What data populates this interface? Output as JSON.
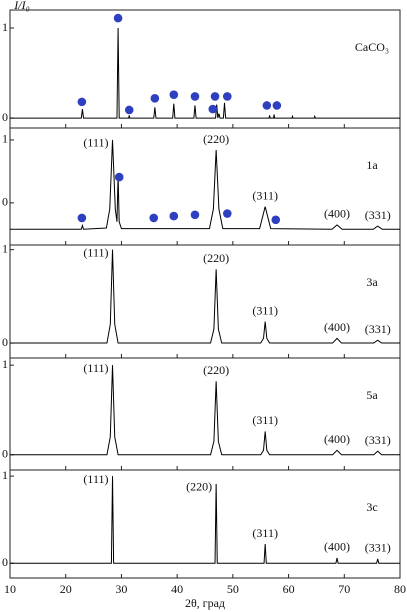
{
  "chart_data": [
    {
      "type": "line",
      "label": "CaCO₃",
      "ylabel": "I/I₀",
      "xlim": [
        10,
        80
      ],
      "ylim": [
        -0.11,
        1.2
      ],
      "yticks": [
        0,
        1
      ],
      "xticks": [
        10,
        20,
        30,
        40,
        50,
        60,
        70,
        80
      ],
      "line": {
        "color": "#000000",
        "x": [
          10,
          22.8,
          23.0,
          23.2,
          29.2,
          29.4,
          29.6,
          31.3,
          31.4,
          31.5,
          35.8,
          36.0,
          36.2,
          39.2,
          39.4,
          39.6,
          43.0,
          43.2,
          43.4,
          46.9,
          47.1,
          47.3,
          47.5,
          47.7,
          48.3,
          48.5,
          48.7,
          56.5,
          56.6,
          56.7,
          57.3,
          57.4,
          57.5,
          60.6,
          60.7,
          60.8,
          64.6,
          64.7,
          64.8,
          80
        ],
        "y": [
          0,
          0,
          0.1,
          0,
          0,
          1.0,
          0,
          0,
          0.03,
          0,
          0,
          0.12,
          0,
          0,
          0.16,
          0,
          0,
          0.14,
          0,
          0,
          0.15,
          0,
          0.05,
          0,
          0,
          0.17,
          0,
          0,
          0.03,
          0,
          0,
          0.04,
          0,
          0,
          0.02,
          0,
          0,
          0.02,
          0,
          0
        ]
      },
      "markers": {
        "color": "#2e3fbf",
        "x": [
          22.9,
          29.4,
          31.4,
          36.0,
          39.4,
          43.2,
          46.8,
          46.4,
          49.0,
          56.1,
          57.9
        ],
        "y": [
          0.18,
          1.11,
          0.09,
          0.22,
          0.26,
          0.24,
          0.24,
          0.1,
          0.24,
          0.14,
          0.14
        ]
      },
      "peaks": []
    },
    {
      "type": "line",
      "label": "1a",
      "xlim": [
        10,
        80
      ],
      "ylim": [
        -0.67,
        1.19
      ],
      "yticks": [
        0,
        1
      ],
      "xticks": [
        10,
        20,
        30,
        40,
        50,
        60,
        70,
        80
      ],
      "line": {
        "color": "#000000",
        "x": [
          10,
          22.8,
          23.0,
          23.2,
          27.3,
          27.9,
          28.4,
          28.9,
          29.2,
          29.4,
          29.6,
          30.0,
          45.8,
          46.5,
          47.0,
          47.5,
          48.2,
          54.8,
          55.4,
          55.8,
          56.2,
          56.8,
          67.8,
          68.7,
          69.6,
          75.2,
          76.0,
          76.8,
          80
        ],
        "y": [
          -0.42,
          -0.42,
          -0.36,
          -0.42,
          -0.4,
          -0.1,
          1.0,
          -0.1,
          -0.3,
          0.44,
          -0.3,
          -0.41,
          -0.41,
          -0.1,
          0.84,
          -0.1,
          -0.41,
          -0.41,
          -0.2,
          -0.06,
          -0.2,
          -0.41,
          -0.42,
          -0.35,
          -0.42,
          -0.42,
          -0.37,
          -0.42,
          -0.42
        ]
      },
      "markers": {
        "color": "#2e3fbf",
        "x": [
          22.9,
          29.6,
          35.8,
          39.4,
          43.2,
          49.0,
          57.7
        ],
        "y": [
          -0.24,
          0.41,
          -0.24,
          -0.21,
          -0.19,
          -0.17,
          -0.27
        ]
      },
      "peaks": [
        {
          "label": "(111)",
          "x": 28.4
        },
        {
          "label": "(220)",
          "x": 47.0
        },
        {
          "label": "(311)",
          "x": 55.8
        },
        {
          "label": "(400)",
          "x": 68.7
        },
        {
          "label": "(331)",
          "x": 76.0
        }
      ]
    },
    {
      "type": "line",
      "label": "3a",
      "xlim": [
        10,
        80
      ],
      "ylim": [
        -0.16,
        1.05
      ],
      "yticks": [
        0,
        1
      ],
      "xticks": [
        10,
        20,
        30,
        40,
        50,
        60,
        70,
        80
      ],
      "line": {
        "color": "#000000",
        "x": [
          10,
          27.4,
          28.0,
          28.4,
          28.8,
          29.4,
          46.0,
          46.6,
          47.0,
          47.4,
          48.0,
          55.0,
          55.5,
          55.8,
          56.1,
          56.6,
          67.9,
          68.7,
          69.5,
          75.3,
          76.0,
          76.7,
          80
        ],
        "y": [
          0,
          0,
          0.2,
          1.0,
          0.2,
          0,
          0,
          0.15,
          0.79,
          0.15,
          0,
          0,
          0.05,
          0.23,
          0.05,
          0,
          0,
          0.05,
          0,
          0,
          0.03,
          0,
          0
        ]
      },
      "peaks": [
        {
          "label": "(111)",
          "x": 28.4
        },
        {
          "label": "(220)",
          "x": 47.0
        },
        {
          "label": "(311)",
          "x": 55.8
        },
        {
          "label": "(400)",
          "x": 68.7
        },
        {
          "label": "(331)",
          "x": 76.0
        }
      ]
    },
    {
      "type": "line",
      "label": "5a",
      "xlim": [
        10,
        80
      ],
      "ylim": [
        -0.17,
        1.08
      ],
      "yticks": [
        0,
        1
      ],
      "xticks": [
        10,
        20,
        30,
        40,
        50,
        60,
        70,
        80
      ],
      "line": {
        "color": "#000000",
        "x": [
          10,
          27.4,
          28.0,
          28.4,
          28.8,
          29.4,
          46.0,
          46.6,
          47.0,
          47.4,
          48.0,
          55.0,
          55.5,
          55.8,
          56.1,
          56.6,
          67.9,
          68.7,
          69.5,
          75.3,
          76.0,
          76.7,
          80
        ],
        "y": [
          0,
          0,
          0.2,
          1.0,
          0.2,
          0,
          0,
          0.15,
          0.82,
          0.15,
          0,
          0,
          0.05,
          0.26,
          0.05,
          0,
          0,
          0.05,
          0,
          0,
          0.04,
          0,
          0
        ]
      },
      "peaks": [
        {
          "label": "(111)",
          "x": 28.4
        },
        {
          "label": "(220)",
          "x": 47.0
        },
        {
          "label": "(311)",
          "x": 55.8
        },
        {
          "label": "(400)",
          "x": 68.7
        },
        {
          "label": "(331)",
          "x": 76.0
        }
      ]
    },
    {
      "type": "line",
      "label": "3c",
      "xlabel": "2θ, град",
      "xlim": [
        10,
        80
      ],
      "ylim": [
        -0.17,
        1.07
      ],
      "yticks": [
        0,
        1
      ],
      "xticks": [
        10,
        20,
        30,
        40,
        50,
        60,
        70,
        80
      ],
      "line": {
        "color": "#000000",
        "x": [
          10,
          28.2,
          28.4,
          28.6,
          46.8,
          47.0,
          47.2,
          55.6,
          55.8,
          56.0,
          68.5,
          68.7,
          68.9,
          75.8,
          76.0,
          76.2,
          80
        ],
        "y": [
          0,
          0,
          1.0,
          0,
          0,
          0.91,
          0,
          0,
          0.22,
          0,
          0,
          0.06,
          0,
          0,
          0.05,
          0,
          0
        ]
      },
      "peaks": [
        {
          "label": "(111)",
          "x": 28.4
        },
        {
          "label": "(220)",
          "x": 47.0
        },
        {
          "label": "(311)",
          "x": 55.8
        },
        {
          "label": "(400)",
          "x": 68.7
        },
        {
          "label": "(331)",
          "x": 76.0
        }
      ]
    }
  ]
}
